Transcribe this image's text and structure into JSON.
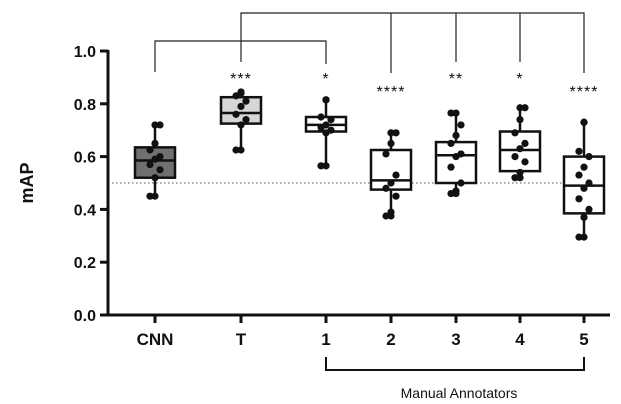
{
  "chart_data": {
    "type": "box",
    "ylabel": "mAP",
    "ylim": [
      0.0,
      1.0
    ],
    "yticks": [
      "0.0",
      "0.2",
      "0.4",
      "0.6",
      "0.8",
      "1.0"
    ],
    "reference_line": 0.5,
    "group_label": "Manual Annotators",
    "categories": [
      "CNN",
      "T",
      "1",
      "2",
      "3",
      "4",
      "5"
    ],
    "colors": {
      "CNN": "#707070",
      "T": "#d6d6d6",
      "default": "#ffffff"
    },
    "significance": [
      "",
      "***",
      "*",
      "****",
      "**",
      "*",
      "****"
    ],
    "boxes": [
      {
        "name": "CNN",
        "min": 0.45,
        "q1": 0.52,
        "median": 0.585,
        "q3": 0.635,
        "max": 0.72,
        "points": [
          0.45,
          0.52,
          0.55,
          0.57,
          0.59,
          0.6,
          0.625,
          0.65,
          0.72
        ]
      },
      {
        "name": "T",
        "min": 0.625,
        "q1": 0.725,
        "median": 0.765,
        "q3": 0.825,
        "max": 0.845,
        "points": [
          0.625,
          0.72,
          0.74,
          0.76,
          0.79,
          0.81,
          0.83,
          0.84
        ]
      },
      {
        "name": "1",
        "min": 0.565,
        "q1": 0.695,
        "median": 0.72,
        "q3": 0.75,
        "max": 0.815,
        "points": [
          0.565,
          0.69,
          0.7,
          0.71,
          0.72,
          0.74,
          0.75,
          0.815
        ]
      },
      {
        "name": "2",
        "min": 0.375,
        "q1": 0.475,
        "median": 0.51,
        "q3": 0.625,
        "max": 0.69,
        "points": [
          0.375,
          0.39,
          0.45,
          0.48,
          0.5,
          0.53,
          0.61,
          0.65,
          0.69
        ]
      },
      {
        "name": "3",
        "min": 0.46,
        "q1": 0.5,
        "median": 0.605,
        "q3": 0.655,
        "max": 0.765,
        "points": [
          0.46,
          0.47,
          0.5,
          0.56,
          0.6,
          0.61,
          0.65,
          0.68,
          0.72,
          0.765
        ]
      },
      {
        "name": "4",
        "min": 0.52,
        "q1": 0.545,
        "median": 0.625,
        "q3": 0.695,
        "max": 0.785,
        "points": [
          0.52,
          0.54,
          0.58,
          0.6,
          0.63,
          0.65,
          0.69,
          0.74,
          0.785
        ]
      },
      {
        "name": "5",
        "min": 0.295,
        "q1": 0.385,
        "median": 0.49,
        "q3": 0.6,
        "max": 0.73,
        "points": [
          0.295,
          0.37,
          0.4,
          0.44,
          0.48,
          0.5,
          0.53,
          0.56,
          0.6,
          0.62,
          0.73
        ]
      }
    ],
    "comparisons": [
      {
        "from": "CNN",
        "to": "1"
      },
      {
        "from": "T",
        "to": [
          "2",
          "3",
          "4",
          "5"
        ]
      }
    ]
  }
}
